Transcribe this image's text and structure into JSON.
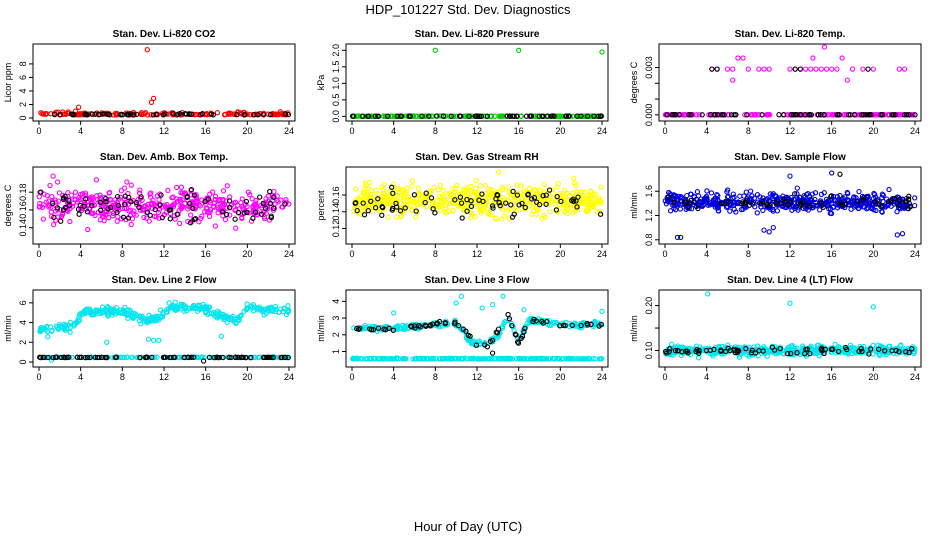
{
  "figure": {
    "title": "HDP_101227  Std. Dev. Diagnostics",
    "xlabel": "Hour of Day (UTC)"
  },
  "chart_data": [
    {
      "type": "scatter",
      "title": "Stan. Dev. Li-820 CO2",
      "ylabel": "Licor ppm",
      "xlim": [
        0,
        24
      ],
      "ylim": [
        0,
        10.5
      ],
      "xticks": [
        0,
        4,
        8,
        12,
        16,
        20,
        24
      ],
      "yticks": [
        0,
        2,
        4,
        6,
        8
      ],
      "ytick_labels": [
        "0",
        "2",
        "4",
        "6",
        "8"
      ],
      "series": [
        {
          "name": "primary",
          "color": "#ff0000",
          "pattern": {
            "kind": "band",
            "base": 0.45,
            "spread": 0.35,
            "n": 160
          },
          "points": [
            [
              10.4,
              10.1
            ],
            [
              11.0,
              2.9
            ],
            [
              10.8,
              2.3
            ],
            [
              3.8,
              1.6
            ],
            [
              3.5,
              1.0
            ],
            [
              2.8,
              0.9
            ]
          ]
        },
        {
          "name": "secondary",
          "color": "#000000",
          "pattern": {
            "kind": "band",
            "base": 0.45,
            "spread": 0.2,
            "n": 50
          },
          "points": []
        }
      ]
    },
    {
      "type": "scatter",
      "title": "Stan. Dev. Li-820 Pressure",
      "ylabel": "kPa",
      "xlim": [
        0,
        24
      ],
      "ylim": [
        -0.05,
        2.1
      ],
      "xticks": [
        0,
        4,
        8,
        12,
        16,
        20,
        24
      ],
      "yticks": [
        0,
        0.5,
        1,
        1.5,
        2
      ],
      "ytick_labels": [
        "0.0",
        "0.5",
        "1.0",
        "1.5",
        "2.0"
      ],
      "series": [
        {
          "name": "primary",
          "color": "#00cc00",
          "pattern": {
            "kind": "band",
            "base": 0.0,
            "spread": 0.01,
            "n": 170
          },
          "points": [
            [
              8.0,
              2.0
            ],
            [
              16.0,
              2.0
            ],
            [
              24.0,
              1.95
            ],
            [
              0.2,
              0.0
            ]
          ]
        },
        {
          "name": "secondary",
          "color": "#000000",
          "pattern": {
            "kind": "band",
            "base": 0.0,
            "spread": 0.01,
            "n": 60
          },
          "points": []
        }
      ]
    },
    {
      "type": "scatter",
      "title": "Stan. Dev. Li-820 Temp.",
      "ylabel": "degrees C",
      "xlim": [
        0,
        24
      ],
      "ylim": [
        -0.0002,
        0.0043
      ],
      "xticks": [
        0,
        4,
        8,
        12,
        16,
        20,
        24
      ],
      "yticks": [
        0,
        0.001,
        0.002,
        0.003
      ],
      "ytick_labels": [
        "0.000",
        "",
        "",
        "0.003"
      ],
      "series": [
        {
          "name": "primary",
          "color": "#ff00ff",
          "pattern": {
            "kind": "band",
            "base": 0.0,
            "spread": 1e-05,
            "n": 160
          },
          "points": [
            [
              4.5,
              0.0029
            ],
            [
              5.0,
              0.0029
            ],
            [
              6.0,
              0.0029
            ],
            [
              6.5,
              0.0029
            ],
            [
              7.0,
              0.0036
            ],
            [
              7.5,
              0.0036
            ],
            [
              8.0,
              0.0029
            ],
            [
              9.0,
              0.0029
            ],
            [
              9.5,
              0.0029
            ],
            [
              10.0,
              0.0029
            ],
            [
              6.5,
              0.0022
            ],
            [
              12.0,
              0.0029
            ],
            [
              12.5,
              0.0029
            ],
            [
              13.0,
              0.0029
            ],
            [
              13.5,
              0.0029
            ],
            [
              14.0,
              0.0029
            ],
            [
              14.5,
              0.0029
            ],
            [
              15.0,
              0.0029
            ],
            [
              15.5,
              0.0029
            ],
            [
              16.0,
              0.0029
            ],
            [
              16.5,
              0.0029
            ],
            [
              17.0,
              0.0036
            ],
            [
              18.0,
              0.0029
            ],
            [
              19.0,
              0.0029
            ],
            [
              20.0,
              0.0029
            ],
            [
              22.5,
              0.0029
            ],
            [
              23.0,
              0.0029
            ],
            [
              15.3,
              0.0043
            ],
            [
              14.2,
              0.0036
            ],
            [
              17.5,
              0.0022
            ]
          ]
        },
        {
          "name": "secondary",
          "color": "#000000",
          "pattern": {
            "kind": "band",
            "base": 0.0,
            "spread": 1e-05,
            "n": 60
          },
          "points": [
            [
              4.5,
              0.0029
            ],
            [
              12.5,
              0.0029
            ],
            [
              13.0,
              0.0029
            ],
            [
              19.5,
              0.0029
            ],
            [
              5.0,
              0.0029
            ]
          ]
        }
      ]
    },
    {
      "type": "scatter",
      "title": "Stan. Dev. Amb. Box Temp.",
      "ylabel": "degrees C",
      "xlim": [
        0,
        24
      ],
      "ylim": [
        0.125,
        0.205
      ],
      "xticks": [
        0,
        4,
        8,
        12,
        16,
        20,
        24
      ],
      "yticks": [
        0.14,
        0.16,
        0.18
      ],
      "ytick_labels": [
        "0.14",
        "0.16",
        "0.18"
      ],
      "series": [
        {
          "name": "primary",
          "color": "#ff00ff",
          "pattern": {
            "kind": "cloud",
            "base": 0.165,
            "spread": 0.018,
            "n": 420
          },
          "points": []
        },
        {
          "name": "secondary",
          "color": "#000000",
          "pattern": {
            "kind": "cloud",
            "base": 0.162,
            "spread": 0.016,
            "n": 80
          },
          "points": []
        }
      ]
    },
    {
      "type": "scatter",
      "title": "Stan. Dev. Gas Stream RH",
      "ylabel": "percent",
      "xlim": [
        0,
        24
      ],
      "ylim": [
        0.105,
        0.19
      ],
      "xticks": [
        0,
        4,
        8,
        12,
        16,
        20,
        24
      ],
      "yticks": [
        0.12,
        0.14,
        0.16
      ],
      "ytick_labels": [
        "0.12",
        "0.14",
        "0.16"
      ],
      "series": [
        {
          "name": "primary",
          "color": "#ffff00",
          "pattern": {
            "kind": "cloud",
            "base": 0.153,
            "spread": 0.016,
            "n": 560
          },
          "points": []
        },
        {
          "name": "secondary",
          "color": "#000000",
          "pattern": {
            "kind": "cloud",
            "base": 0.151,
            "spread": 0.013,
            "n": 75
          },
          "points": []
        }
      ]
    },
    {
      "type": "scatter",
      "title": "Stan. Dev. Sample Flow",
      "ylabel": "ml/min",
      "xlim": [
        0,
        24
      ],
      "ylim": [
        0.78,
        1.95
      ],
      "xticks": [
        0,
        4,
        8,
        12,
        16,
        20,
        24
      ],
      "yticks": [
        0.8,
        1.2,
        1.6
      ],
      "ytick_labels": [
        "0.8",
        "1.2",
        "1.6"
      ],
      "series": [
        {
          "name": "primary",
          "color": "#0000dd",
          "pattern": {
            "kind": "cloud",
            "base": 1.42,
            "spread": 0.13,
            "n": 520
          },
          "points": [
            [
              1.2,
              0.84
            ],
            [
              1.5,
              0.84
            ],
            [
              22.3,
              0.88
            ],
            [
              22.8,
              0.9
            ],
            [
              9.5,
              0.96
            ],
            [
              10.0,
              0.93
            ],
            [
              10.4,
              1.0
            ],
            [
              16.0,
              1.9
            ],
            [
              12.0,
              1.85
            ]
          ]
        },
        {
          "name": "secondary",
          "color": "#000000",
          "pattern": {
            "kind": "cloud",
            "base": 1.42,
            "spread": 0.09,
            "n": 60
          },
          "points": [
            [
              16.8,
              1.88
            ]
          ]
        }
      ]
    },
    {
      "type": "scatter",
      "title": "Stan. Dev. Line 2 Flow",
      "ylabel": "ml/min",
      "xlim": [
        0,
        24
      ],
      "ylim": [
        -0.2,
        7
      ],
      "xticks": [
        0,
        4,
        8,
        12,
        16,
        20,
        24
      ],
      "yticks": [
        0,
        2,
        4,
        6
      ],
      "ytick_labels": [
        "0",
        "2",
        "4",
        "6"
      ],
      "series": [
        {
          "name": "primary",
          "color": "#00e5ee",
          "pattern": {
            "kind": "wave",
            "spread": 0.35,
            "n": 360,
            "profile": [
              [
                0,
                3.2
              ],
              [
                3.5,
                3.6
              ],
              [
                4,
                5.0
              ],
              [
                8,
                5.2
              ],
              [
                10,
                4.3
              ],
              [
                11.5,
                4.5
              ],
              [
                12.5,
                5.6
              ],
              [
                14,
                5.5
              ],
              [
                16,
                5.4
              ],
              [
                17.5,
                4.6
              ],
              [
                19,
                4.2
              ],
              [
                20,
                5.6
              ],
              [
                22,
                5.3
              ],
              [
                24,
                5.2
              ]
            ]
          },
          "points": [
            [
              10.5,
              2.3
            ],
            [
              11.0,
              2.2
            ],
            [
              11.5,
              2.2
            ],
            [
              6.5,
              2.0
            ],
            [
              17.5,
              2.6
            ],
            [
              1.2,
              0.2
            ]
          ]
        },
        {
          "name": "baseline",
          "color": "#00e5ee",
          "pattern": {
            "kind": "band",
            "base": 0.45,
            "spread": 0.05,
            "n": 120
          },
          "points": []
        },
        {
          "name": "secondary",
          "color": "#000000",
          "pattern": {
            "kind": "band",
            "base": 0.45,
            "spread": 0.05,
            "n": 85
          },
          "points": [
            [
              15.8,
              0.1
            ]
          ]
        }
      ]
    },
    {
      "type": "scatter",
      "title": "Stan. Dev. Line 3 Flow",
      "ylabel": "ml/min",
      "xlim": [
        0,
        24
      ],
      "ylim": [
        0.25,
        4.5
      ],
      "xticks": [
        0,
        4,
        8,
        12,
        16,
        20,
        24
      ],
      "yticks": [
        1,
        2,
        3,
        4
      ],
      "ytick_labels": [
        "1",
        "2",
        "3",
        "4"
      ],
      "series": [
        {
          "name": "upper",
          "color": "#00e5ee",
          "pattern": {
            "kind": "wave",
            "spread": 0.12,
            "n": 260,
            "profile": [
              [
                0,
                2.4
              ],
              [
                4,
                2.4
              ],
              [
                8,
                2.6
              ],
              [
                10,
                2.7
              ],
              [
                11.5,
                1.5
              ],
              [
                13,
                1.5
              ],
              [
                14,
                1.9
              ],
              [
                15,
                3.1
              ],
              [
                16,
                1.6
              ],
              [
                17,
                2.9
              ],
              [
                20,
                2.6
              ],
              [
                24,
                2.6
              ]
            ]
          },
          "points": [
            [
              10.5,
              4.3
            ],
            [
              14.5,
              4.3
            ],
            [
              12.5,
              3.6
            ],
            [
              16.5,
              3.5
            ],
            [
              24.0,
              3.4
            ],
            [
              4.0,
              3.3
            ],
            [
              13.5,
              3.8
            ],
            [
              10.0,
              3.9
            ]
          ]
        },
        {
          "name": "baseline",
          "color": "#00e5ee",
          "pattern": {
            "kind": "band",
            "base": 0.55,
            "spread": 0.04,
            "n": 240
          },
          "points": []
        },
        {
          "name": "secondary",
          "color": "#000000",
          "pattern": {
            "kind": "wave",
            "spread": 0.1,
            "n": 70,
            "profile": [
              [
                0,
                2.35
              ],
              [
                4,
                2.35
              ],
              [
                8,
                2.6
              ],
              [
                10,
                2.7
              ],
              [
                12,
                1.45
              ],
              [
                13,
                1.35
              ],
              [
                15,
                3.1
              ],
              [
                16,
                1.5
              ],
              [
                17,
                2.9
              ],
              [
                20,
                2.6
              ],
              [
                24,
                2.6
              ]
            ]
          },
          "points": [
            [
              13.5,
              0.9
            ]
          ]
        }
      ]
    },
    {
      "type": "scatter",
      "title": "Stan. Dev. Line 4 (LT) Flow",
      "ylabel": "ml/min",
      "xlim": [
        0,
        24
      ],
      "ylim": [
        0.07,
        0.228
      ],
      "xticks": [
        0,
        4,
        8,
        12,
        16,
        20,
        24
      ],
      "yticks": [
        0.1,
        0.15,
        0.2
      ],
      "ytick_labels": [
        "0.10",
        "",
        "0.20"
      ],
      "series": [
        {
          "name": "primary",
          "color": "#00e5ee",
          "pattern": {
            "kind": "cloud",
            "base": 0.1,
            "spread": 0.009,
            "n": 480
          },
          "points": [
            [
              4.1,
              0.226
            ],
            [
              12.0,
              0.205
            ],
            [
              20.0,
              0.197
            ]
          ]
        },
        {
          "name": "secondary",
          "color": "#000000",
          "pattern": {
            "kind": "cloud",
            "base": 0.1,
            "spread": 0.007,
            "n": 70
          },
          "points": []
        }
      ]
    }
  ]
}
